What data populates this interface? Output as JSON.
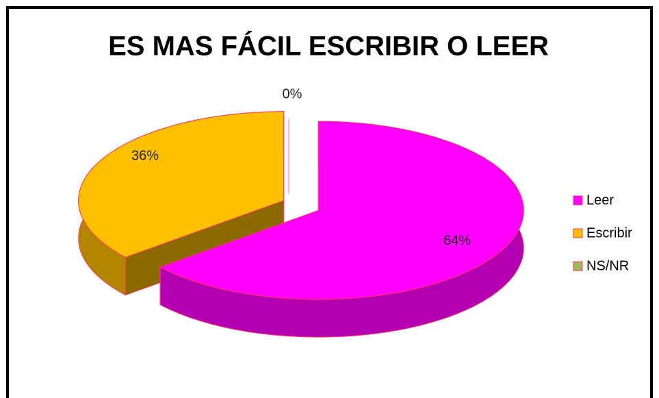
{
  "chart_data": {
    "type": "pie3d",
    "title": "ES MAS FÁCIL ESCRIBIR O LEER",
    "categories": [
      "Leer",
      "Escribir",
      "NS/NR"
    ],
    "values": [
      64,
      36,
      0
    ],
    "value_labels": [
      "64%",
      "36%",
      "0%"
    ],
    "colors": [
      "#ff00ff",
      "#ffc000",
      "#9bbb59"
    ],
    "legend": "right"
  }
}
